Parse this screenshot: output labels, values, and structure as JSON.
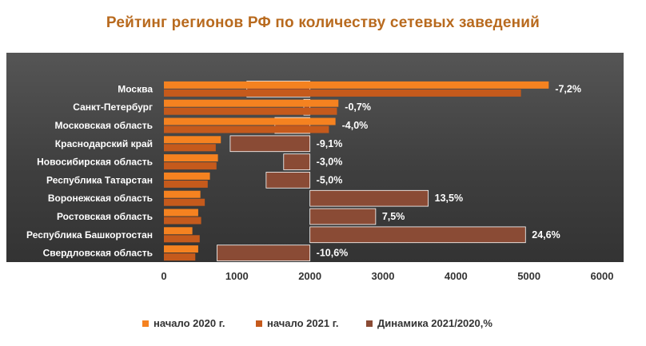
{
  "chart_data": {
    "type": "bar",
    "orientation": "horizontal",
    "title": "Рейтинг регионов РФ по количеству сетевых заведений",
    "categories": [
      "Москва",
      "Санкт-Петербург",
      "Московская область",
      "Краснодарский край",
      "Новосибирская  область",
      "Республика Татарстан",
      "Воронежская область",
      "Ростовская область",
      "Республика Башкортостан",
      "Свердловская область"
    ],
    "series": [
      {
        "name": "начало  2020 г.",
        "values": [
          5270,
          2390,
          2350,
          780,
          740,
          630,
          500,
          470,
          390,
          470
        ],
        "color": "#f58220"
      },
      {
        "name": "начало 2021 г.",
        "values": [
          4890,
          2370,
          2260,
          710,
          720,
          600,
          560,
          510,
          490,
          430
        ],
        "color": "#c55a1c"
      },
      {
        "name": "Динамика 2021/2020,%",
        "values": [
          -7.2,
          -0.7,
          -4.0,
          -9.1,
          -3.0,
          -5.0,
          13.5,
          7.5,
          24.6,
          -10.6
        ],
        "labels": [
          "-7,2%",
          "-0,7%",
          "-4,0%",
          "-9,1%",
          "-3,0%",
          "-5,0%",
          "13,5%",
          "7,5%",
          "24,6%",
          "-10,6%"
        ],
        "baseline": 2000,
        "color": "#8a4b35"
      }
    ],
    "x_ticks": [
      "0",
      "1000",
      "2000",
      "3000",
      "4000",
      "5000",
      "6000"
    ],
    "xlim": [
      0,
      6000
    ],
    "grid": false,
    "legend_position": "bottom"
  }
}
